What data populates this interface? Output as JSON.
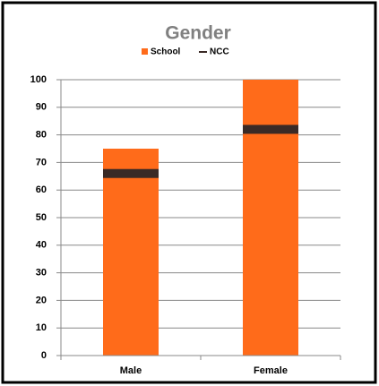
{
  "chart_data": {
    "type": "bar",
    "title": "Gender",
    "categories": [
      "Male",
      "Female"
    ],
    "series": [
      {
        "name": "School",
        "color": "#ff6b1a",
        "kind": "bar",
        "values": [
          75,
          100
        ]
      },
      {
        "name": "NCC",
        "color": "#3a2a26",
        "kind": "marker",
        "values": [
          66,
          82
        ]
      }
    ],
    "ylim": [
      0,
      100
    ],
    "yticks": [
      0,
      10,
      20,
      30,
      40,
      50,
      60,
      70,
      80,
      90,
      100
    ],
    "grid": true,
    "legend": "top"
  }
}
